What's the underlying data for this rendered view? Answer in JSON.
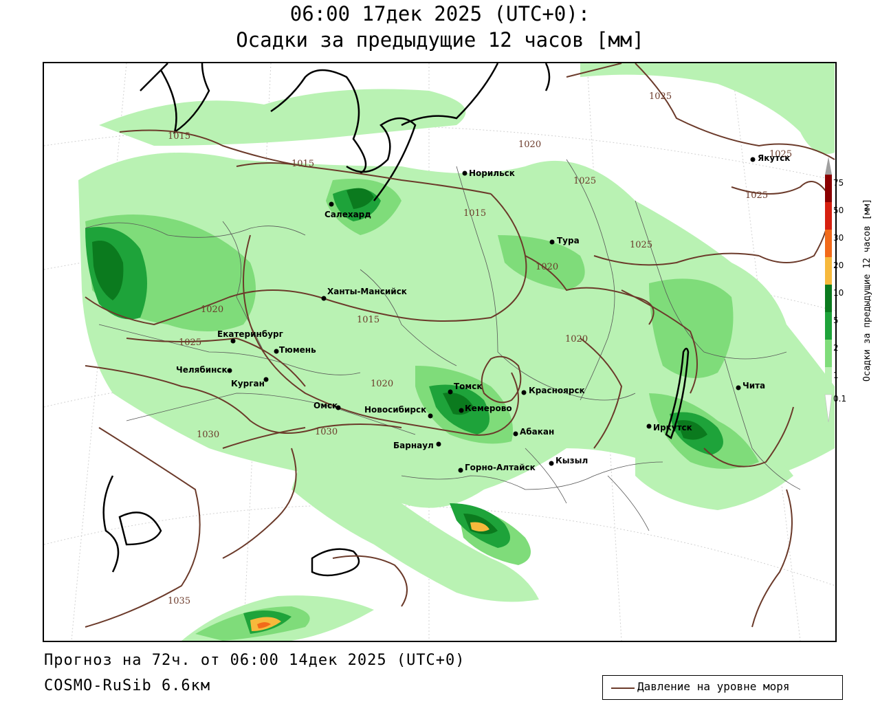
{
  "title": {
    "line1": "06:00 17дек 2025 (UTC+0):",
    "line2": "Осадки за предыдущие 12 часов [мм]"
  },
  "footer": {
    "forecast": "Прогноз на 72ч. от 06:00 14дек 2025 (UTC+0)",
    "model": "COSMO-RuSib 6.6км"
  },
  "legend": {
    "line_label": "Давление на уровне моря",
    "line_color": "#6b3a2a"
  },
  "colorbar": {
    "title": "Осадки за предыдущие 12 часов [мм]",
    "ticks": [
      "75",
      "50",
      "30",
      "20",
      "10",
      "5",
      "2",
      "1",
      "0.1"
    ],
    "colors": {
      "above": "#a0a0a0",
      "50-75": "#8b0000",
      "30-50": "#d62010",
      "20-30": "#f26a1a",
      "10-20": "#f7b93c",
      "5-10": "#0b7a1e",
      "2-5": "#1ea33a",
      "1-2": "#7fdc7a",
      "0.1-1": "#b9f2b3"
    }
  },
  "map": {
    "cities": [
      {
        "name": "Норильск"
      },
      {
        "name": "Салехард"
      },
      {
        "name": "Тура"
      },
      {
        "name": "Якутск"
      },
      {
        "name": "Ханты-Мансийск"
      },
      {
        "name": "Екатеринбург"
      },
      {
        "name": "Тюмень"
      },
      {
        "name": "Челябинск"
      },
      {
        "name": "Курган"
      },
      {
        "name": "Омск"
      },
      {
        "name": "Новосибирск"
      },
      {
        "name": "Томск"
      },
      {
        "name": "Кемерово"
      },
      {
        "name": "Красноярск"
      },
      {
        "name": "Абакан"
      },
      {
        "name": "Барнаул"
      },
      {
        "name": "Горно-Алтайск"
      },
      {
        "name": "Кызыл"
      },
      {
        "name": "Иркутск"
      },
      {
        "name": "Чита"
      }
    ],
    "isobar_labels": [
      "1015",
      "1015",
      "1015",
      "1015",
      "1020",
      "1020",
      "1020",
      "1020",
      "1020",
      "1025",
      "1025",
      "1025",
      "1025",
      "1025",
      "1025",
      "1030",
      "1030",
      "1035"
    ]
  }
}
